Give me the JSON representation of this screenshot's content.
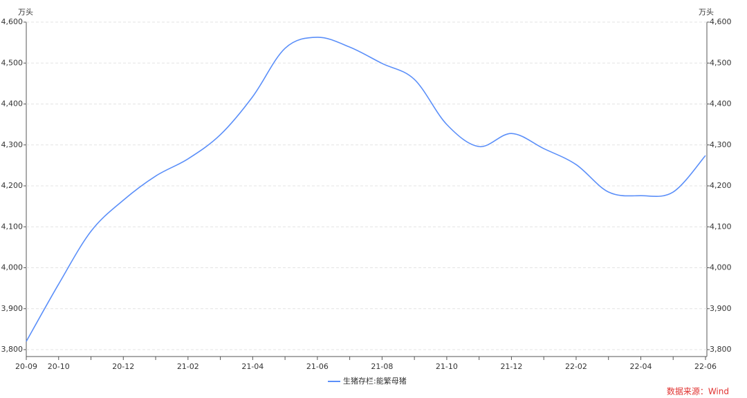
{
  "chart_data": {
    "type": "line",
    "y_unit": "万头",
    "y2_unit": "万头",
    "categories": [
      "20-09",
      "20-10",
      null,
      "20-12",
      null,
      "21-02",
      null,
      "21-04",
      null,
      "21-06",
      null,
      "21-08",
      null,
      "21-10",
      null,
      "21-12",
      null,
      "22-02",
      null,
      "22-04",
      null,
      "22-06"
    ],
    "series": [
      {
        "name": "生猪存栏:能繁母猪",
        "color": "#5b8ff9",
        "values": [
          3820,
          3960,
          4089,
          4165,
          4224,
          4266,
          4325,
          4418,
          4536,
          4563,
          4539,
          4499,
          4460,
          4350,
          4296,
          4328,
          4291,
          4252,
          4185,
          4176,
          4185,
          4274
        ]
      }
    ],
    "ylim": [
      3800,
      4600
    ],
    "yticks": [
      {
        "value": 3800,
        "label": "3,800"
      },
      {
        "value": 3900,
        "label": "3,900"
      },
      {
        "value": 4000,
        "label": "4,000"
      },
      {
        "value": 4100,
        "label": "4,100"
      },
      {
        "value": 4200,
        "label": "4,200"
      },
      {
        "value": 4300,
        "label": "4,300"
      },
      {
        "value": 4400,
        "label": "4,400"
      },
      {
        "value": 4500,
        "label": "4,500"
      },
      {
        "value": 4600,
        "label": "4,600"
      }
    ],
    "y2lim": [
      3800,
      4600
    ],
    "y2ticks": [
      {
        "value": 3800,
        "label": "3,800"
      },
      {
        "value": 3900,
        "label": "3,900"
      },
      {
        "value": 4000,
        "label": "4,000"
      },
      {
        "value": 4100,
        "label": "4,100"
      },
      {
        "value": 4200,
        "label": "4,200"
      },
      {
        "value": 4300,
        "label": "4,300"
      },
      {
        "value": 4400,
        "label": "4,400"
      },
      {
        "value": 4500,
        "label": "4,500"
      },
      {
        "value": 4600,
        "label": "4,600"
      }
    ],
    "grid": true,
    "source": "数据来源：Wind"
  }
}
